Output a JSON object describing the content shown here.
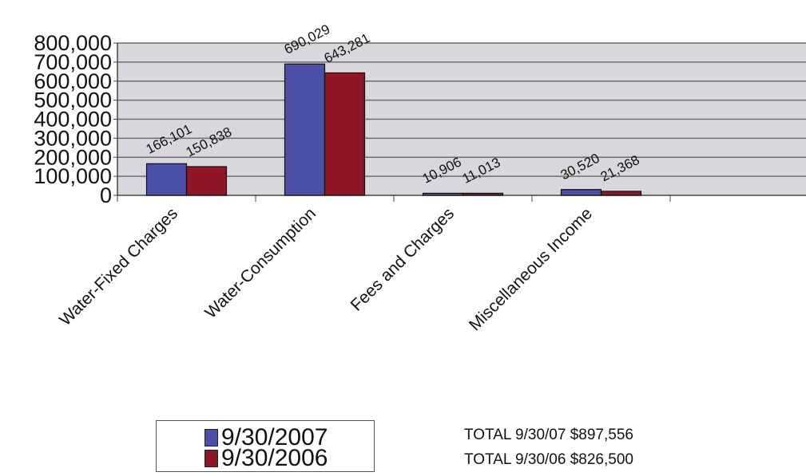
{
  "chart_data": {
    "type": "bar",
    "categories": [
      "Water-Fixed Charges",
      "Water-Consumption",
      "Fees and Charges",
      "Miscellaneous Income"
    ],
    "series": [
      {
        "name": "9/30/2007",
        "values": [
          166101,
          690029,
          10906,
          30520
        ],
        "labels": [
          "166,101",
          "690,029",
          "10,906",
          "30,520"
        ],
        "color": "#4b4fa8"
      },
      {
        "name": "9/30/2006",
        "values": [
          150838,
          643281,
          11013,
          21368
        ],
        "labels": [
          "150,838",
          "643,281",
          "11,013",
          "21,368"
        ],
        "color": "#8e1626"
      }
    ],
    "ylim": [
      0,
      800000
    ],
    "yticks": [
      0,
      100000,
      200000,
      300000,
      400000,
      500000,
      600000,
      700000,
      800000
    ],
    "ytick_labels": [
      "0",
      "100,000",
      "200,000",
      "300,000",
      "400,000",
      "500,000",
      "600,000",
      "700,000",
      "800,000"
    ],
    "grid": true,
    "legend_position": "bottom-left",
    "plot_background": "#d8d8dc"
  },
  "totals": [
    "TOTAL 9/30/07 $897,556",
    "TOTAL 9/30/06 $826,500"
  ]
}
